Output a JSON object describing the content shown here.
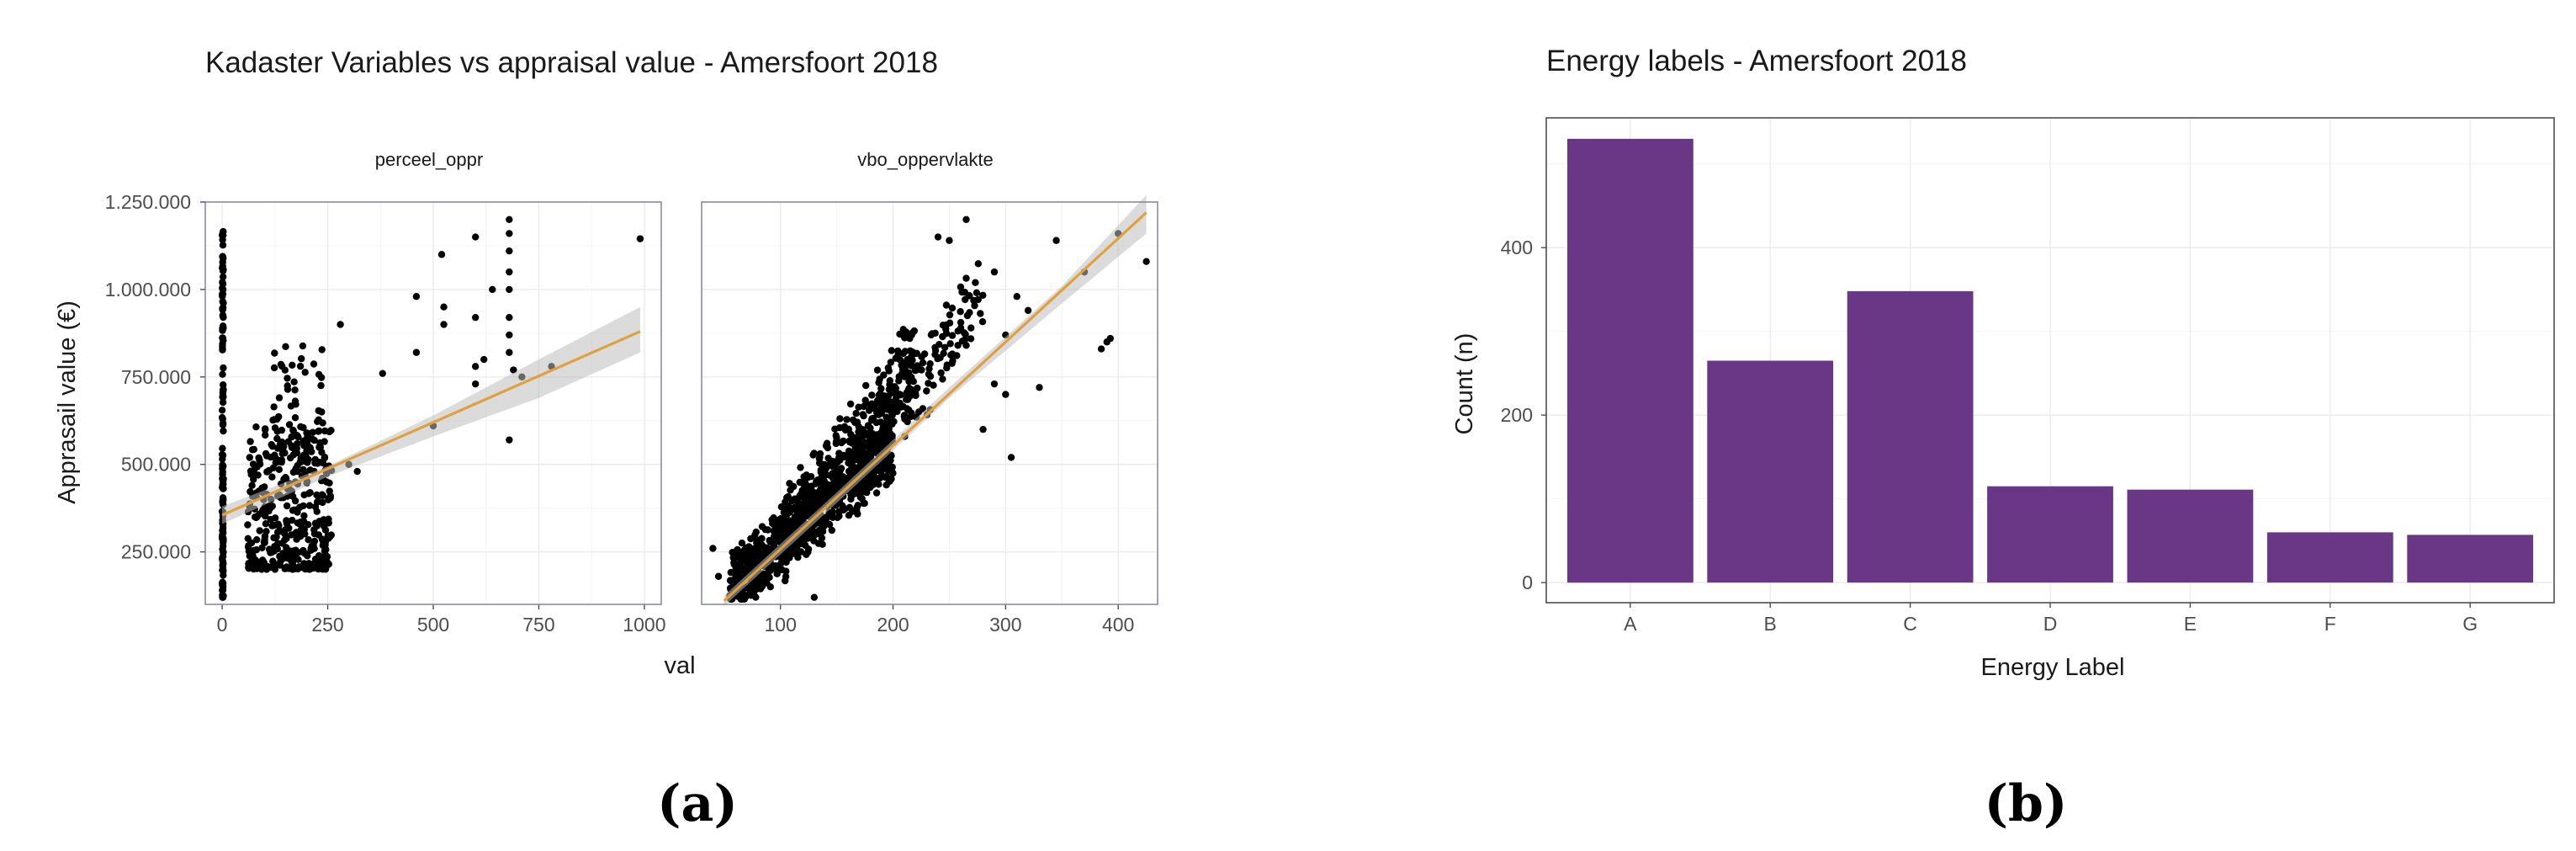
{
  "chart_data": [
    {
      "type": "scatter",
      "title": "Kadaster Variables vs appraisal value - Amersfoort 2018",
      "xlabel": "val",
      "ylabel": "Apprasail value (€)",
      "ylim": [
        100000,
        1250000
      ],
      "yticks": [
        250000,
        500000,
        750000,
        1000000,
        1250000
      ],
      "ytick_labels": [
        "250.000",
        "500.000",
        "750.000",
        "1.000.000",
        "1.250.000"
      ],
      "trend_color": "#e0a040",
      "band_color": "#bdbdbd",
      "panels": [
        {
          "name": "perceel_oppr",
          "xlim": [
            -40,
            1040
          ],
          "xticks": [
            0,
            250,
            500,
            750,
            1000
          ],
          "xtick_labels": [
            "0",
            "250",
            "500",
            "750",
            "1000"
          ],
          "trend": {
            "x0": 0,
            "y0": 355000,
            "x1": 990,
            "y1": 880000
          },
          "band": [
            [
              0,
              330000,
              380000
            ],
            [
              250,
              465000,
              495000
            ],
            [
              500,
              580000,
              640000
            ],
            [
              750,
              690000,
              800000
            ],
            [
              990,
              820000,
              950000
            ]
          ],
          "clusters": [
            {
              "x": [
                0,
                3
              ],
              "y": [
                120000,
                1170000
              ],
              "n": 150
            },
            {
              "x": [
                60,
                260
              ],
              "y": [
                200000,
                620000
              ],
              "n": 360
            },
            {
              "x": [
                120,
                240
              ],
              "y": [
                500000,
                860000
              ],
              "n": 70
            }
          ],
          "points": [
            [
              300,
              500000
            ],
            [
              320,
              480000
            ],
            [
              280,
              900000
            ],
            [
              380,
              760000
            ],
            [
              460,
              820000
            ],
            [
              460,
              980000
            ],
            [
              520,
              1100000
            ],
            [
              525,
              900000
            ],
            [
              525,
              950000
            ],
            [
              500,
              610000
            ],
            [
              600,
              1150000
            ],
            [
              600,
              920000
            ],
            [
              600,
              780000
            ],
            [
              600,
              730000
            ],
            [
              680,
              1200000
            ],
            [
              680,
              1160000
            ],
            [
              680,
              1110000
            ],
            [
              680,
              1050000
            ],
            [
              680,
              1000000
            ],
            [
              680,
              920000
            ],
            [
              680,
              870000
            ],
            [
              680,
              820000
            ],
            [
              690,
              770000
            ],
            [
              680,
              570000
            ],
            [
              710,
              750000
            ],
            [
              780,
              780000
            ],
            [
              990,
              1145000
            ],
            [
              620,
              800000
            ],
            [
              640,
              1000000
            ]
          ]
        },
        {
          "name": "vbo_oppervlakte",
          "xlim": [
            30,
            435
          ],
          "xticks": [
            100,
            200,
            300,
            400
          ],
          "xtick_labels": [
            "100",
            "200",
            "300",
            "400"
          ],
          "trend": {
            "x0": 50,
            "y0": 110000,
            "x1": 425,
            "y1": 1220000
          },
          "band": [
            [
              50,
              95000,
              125000
            ],
            [
              150,
              390000,
              420000
            ],
            [
              250,
              690000,
              720000
            ],
            [
              350,
              960000,
              1010000
            ],
            [
              425,
              1160000,
              1270000
            ]
          ],
          "clusters": [
            {
              "x": [
                55,
                200
              ],
              "y": [
                140000,
                560000
              ],
              "n": 700
            },
            {
              "x": [
                100,
                220
              ],
              "y": [
                300000,
                800000
              ],
              "n": 350
            },
            {
              "x": [
                160,
                280
              ],
              "y": [
                450000,
                1000000
              ],
              "n": 150
            }
          ],
          "points": [
            [
              240,
              1150000
            ],
            [
              250,
              1140000
            ],
            [
              265,
              1200000
            ],
            [
              290,
              1050000
            ],
            [
              300,
              870000
            ],
            [
              300,
              700000
            ],
            [
              305,
              520000
            ],
            [
              310,
              980000
            ],
            [
              320,
              940000
            ],
            [
              330,
              720000
            ],
            [
              345,
              1140000
            ],
            [
              370,
              1050000
            ],
            [
              385,
              830000
            ],
            [
              390,
              850000
            ],
            [
              393,
              860000
            ],
            [
              400,
              1160000
            ],
            [
              425,
              1080000
            ],
            [
              40,
              260000
            ],
            [
              45,
              180000
            ],
            [
              60,
              150000
            ],
            [
              130,
              120000
            ],
            [
              290,
              730000
            ],
            [
              280,
              600000
            ]
          ]
        }
      ]
    },
    {
      "type": "bar",
      "title": "Energy labels - Amersfoort 2018",
      "xlabel": "Energy Label",
      "ylabel": "Count (n)",
      "categories": [
        "A",
        "B",
        "C",
        "D",
        "E",
        "F",
        "G"
      ],
      "values": [
        530,
        265,
        348,
        115,
        111,
        60,
        57
      ],
      "ylim": [
        -24,
        555
      ],
      "yticks": [
        0,
        200,
        400
      ],
      "ytick_labels": [
        "0",
        "200",
        "400"
      ],
      "bar_color": "#6a3787"
    }
  ],
  "captions": [
    "(a)",
    "(b)"
  ]
}
